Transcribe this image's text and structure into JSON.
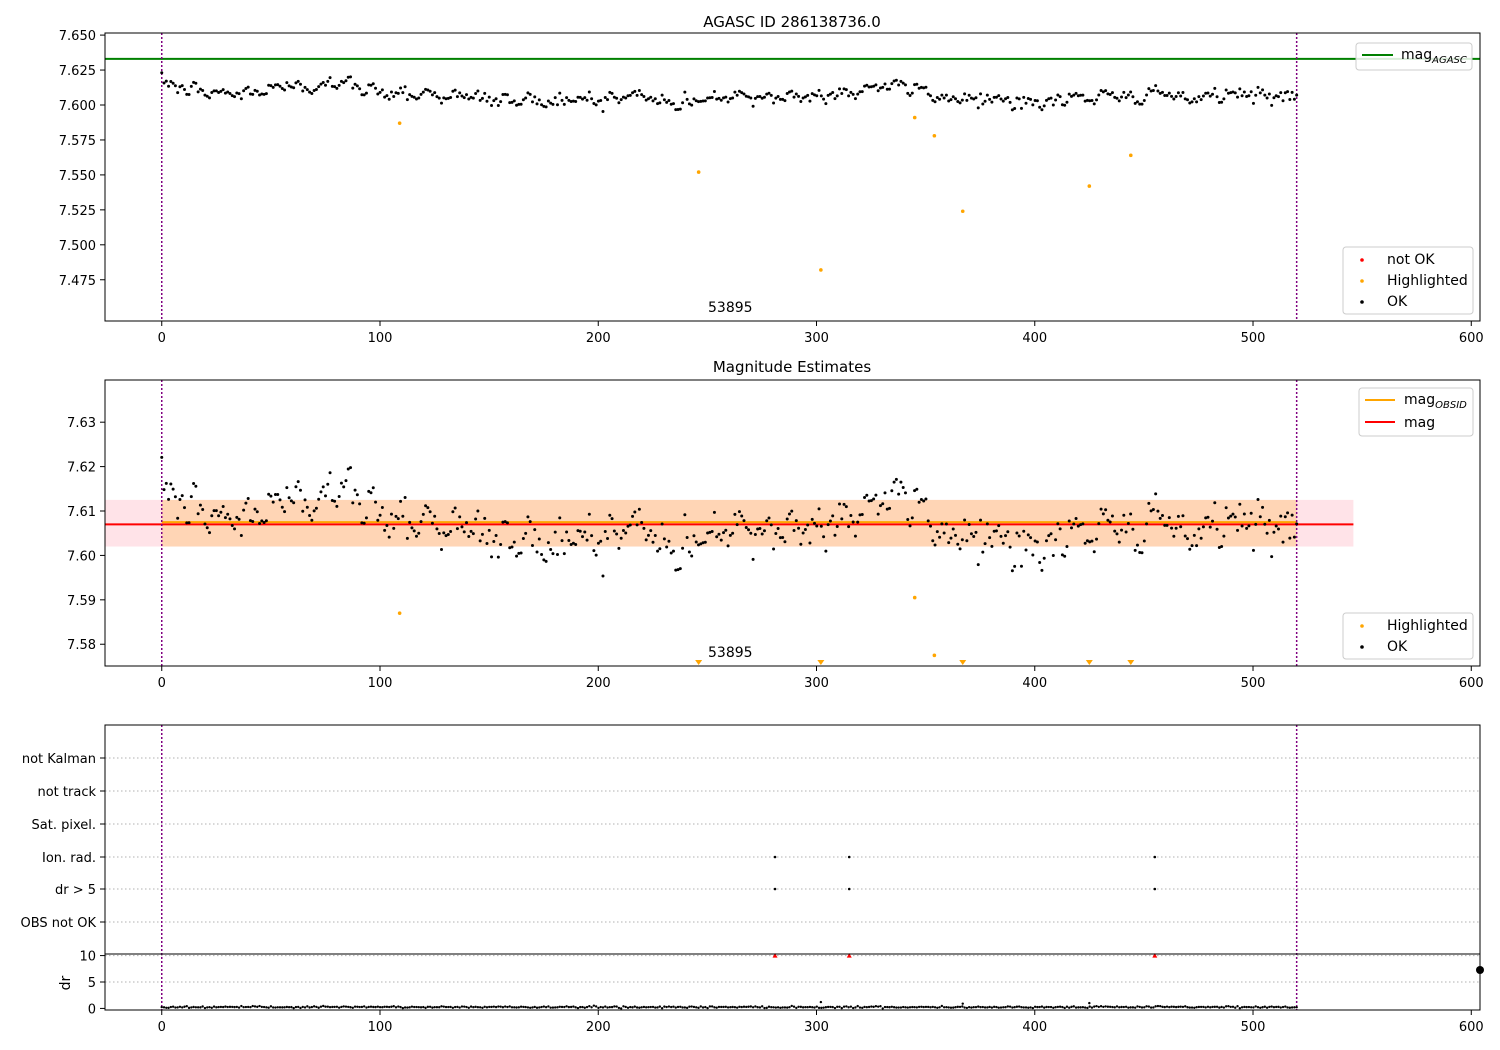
{
  "chart_data": [
    {
      "type": "scatter",
      "title": "AGASC ID 286138736.0",
      "xlim": [
        -26,
        604
      ],
      "ylim": [
        7.4455,
        7.6515
      ],
      "x_ticks": [
        0,
        100,
        200,
        300,
        400,
        500,
        600
      ],
      "y_ticks": [
        7.475,
        7.5,
        7.525,
        7.55,
        7.575,
        7.6,
        7.625,
        7.65
      ],
      "y_tick_labels": [
        "7.475",
        "7.500",
        "7.525",
        "7.550",
        "7.575",
        "7.600",
        "7.625",
        "7.650"
      ],
      "grid": false,
      "reference_lines": {
        "mag_agasc": 7.633
      },
      "obs_boundaries": [
        0,
        520
      ],
      "annotations": [
        {
          "text": "53895",
          "x": 250,
          "y": 7.456
        }
      ],
      "legends": [
        {
          "placement": "top-right",
          "entries": [
            {
              "label": "mag",
              "sub": "AGASC",
              "color": "#008000",
              "kind": "line"
            }
          ]
        },
        {
          "placement": "bottom-right",
          "entries": [
            {
              "label": "not OK",
              "color": "#ff0000",
              "kind": "dot"
            },
            {
              "label": "Highlighted",
              "color": "#ffa500",
              "kind": "dot"
            },
            {
              "label": "OK",
              "color": "#000000",
              "kind": "dot"
            }
          ]
        }
      ],
      "series": [
        {
          "name": "OK",
          "color": "#000000",
          "x_range": [
            0,
            520
          ],
          "n_points": 500,
          "mean": 7.607,
          "anchors": [
            [
              0,
              7.616
            ],
            [
              15,
              7.61
            ],
            [
              30,
              7.608
            ],
            [
              45,
              7.609
            ],
            [
              55,
              7.615
            ],
            [
              65,
              7.61
            ],
            [
              78,
              7.618
            ],
            [
              90,
              7.612
            ],
            [
              105,
              7.609
            ],
            [
              120,
              7.608
            ],
            [
              140,
              7.606
            ],
            [
              160,
              7.603
            ],
            [
              180,
              7.603
            ],
            [
              200,
              7.604
            ],
            [
              220,
              7.607
            ],
            [
              235,
              7.6
            ],
            [
              250,
              7.605
            ],
            [
              265,
              7.605
            ],
            [
              280,
              7.606
            ],
            [
              295,
              7.606
            ],
            [
              315,
              7.609
            ],
            [
              330,
              7.614
            ],
            [
              345,
              7.612
            ],
            [
              360,
              7.604
            ],
            [
              375,
              7.606
            ],
            [
              390,
              7.603
            ],
            [
              405,
              7.601
            ],
            [
              420,
              7.606
            ],
            [
              435,
              7.606
            ],
            [
              445,
              7.604
            ],
            [
              455,
              7.611
            ],
            [
              465,
              7.604
            ],
            [
              480,
              7.606
            ],
            [
              495,
              7.608
            ],
            [
              510,
              7.606
            ],
            [
              520,
              7.607
            ]
          ]
        },
        {
          "name": "Highlighted",
          "color": "#ffa500",
          "x": [
            109,
            246,
            302,
            345,
            354,
            367,
            425,
            444
          ],
          "y": [
            7.587,
            7.552,
            7.482,
            7.591,
            7.578,
            7.524,
            7.542,
            7.564
          ]
        }
      ]
    },
    {
      "type": "scatter",
      "title": "Magnitude Estimates",
      "xlim": [
        -26,
        604
      ],
      "ylim": [
        7.5751,
        7.6395
      ],
      "x_ticks": [
        0,
        100,
        200,
        300,
        400,
        500,
        600
      ],
      "y_ticks": [
        7.58,
        7.59,
        7.6,
        7.61,
        7.62,
        7.63
      ],
      "y_tick_labels": [
        "7.58",
        "7.59",
        "7.60",
        "7.61",
        "7.62",
        "7.63"
      ],
      "grid": false,
      "reference_lines": {
        "mag": 7.607,
        "mag_obsid": 7.6075
      },
      "bands": [
        {
          "color": "#ffc0cb",
          "x_range": [
            -26,
            546
          ],
          "y_range": [
            7.602,
            7.6125
          ]
        },
        {
          "color": "#ffa500",
          "x_range": [
            0,
            520
          ],
          "y_range": [
            7.602,
            7.6125
          ]
        }
      ],
      "obs_boundaries": [
        0,
        520
      ],
      "annotations": [
        {
          "text": "53895",
          "x": 250,
          "y": 7.5783
        }
      ],
      "clipped_markers_x": [
        246,
        302,
        367,
        425,
        444
      ],
      "legends": [
        {
          "placement": "top-right",
          "entries": [
            {
              "label": "mag",
              "sub": "OBSID",
              "color": "#ffa500",
              "kind": "line"
            },
            {
              "label": "mag",
              "color": "#ff0000",
              "kind": "line"
            }
          ]
        },
        {
          "placement": "bottom-right",
          "entries": [
            {
              "label": "Highlighted",
              "color": "#ffa500",
              "kind": "dot"
            },
            {
              "label": "OK",
              "color": "#000000",
              "kind": "dot"
            }
          ]
        }
      ],
      "series": [
        {
          "name": "OK",
          "color": "#000000",
          "x_range": [
            0,
            520
          ],
          "n_points": 500,
          "mean": 7.607,
          "anchors": [
            [
              0,
              7.615
            ],
            [
              15,
              7.61
            ],
            [
              30,
              7.608
            ],
            [
              45,
              7.609
            ],
            [
              55,
              7.614
            ],
            [
              65,
              7.61
            ],
            [
              78,
              7.617
            ],
            [
              90,
              7.612
            ],
            [
              105,
              7.609
            ],
            [
              120,
              7.608
            ],
            [
              140,
              7.606
            ],
            [
              160,
              7.603
            ],
            [
              180,
              7.603
            ],
            [
              200,
              7.604
            ],
            [
              220,
              7.607
            ],
            [
              235,
              7.6
            ],
            [
              250,
              7.605
            ],
            [
              265,
              7.605
            ],
            [
              280,
              7.606
            ],
            [
              295,
              7.606
            ],
            [
              315,
              7.609
            ],
            [
              330,
              7.613
            ],
            [
              345,
              7.612
            ],
            [
              360,
              7.604
            ],
            [
              375,
              7.606
            ],
            [
              390,
              7.603
            ],
            [
              405,
              7.601
            ],
            [
              420,
              7.606
            ],
            [
              435,
              7.606
            ],
            [
              445,
              7.604
            ],
            [
              455,
              7.611
            ],
            [
              465,
              7.604
            ],
            [
              480,
              7.606
            ],
            [
              495,
              7.608
            ],
            [
              510,
              7.606
            ],
            [
              520,
              7.607
            ]
          ]
        },
        {
          "name": "Highlighted",
          "color": "#ffa500",
          "x": [
            109,
            345,
            354
          ],
          "y": [
            7.587,
            7.5905,
            7.5775
          ]
        }
      ]
    },
    {
      "type": "scatter",
      "title": "",
      "xlim": [
        -26,
        604
      ],
      "x_ticks": [
        0,
        100,
        200,
        300,
        400,
        500,
        600
      ],
      "grid": true,
      "obs_boundaries": [
        0,
        520
      ],
      "flag_rows": [
        "not Kalman",
        "not track",
        "Sat. pixel.",
        "Ion. rad.",
        "dr > 5",
        "OBS not OK"
      ],
      "flag_points": [
        {
          "row": "Ion. rad.",
          "x": [
            281,
            315,
            455
          ]
        },
        {
          "row": "dr > 5",
          "x": [
            281,
            315,
            455
          ]
        }
      ],
      "dr_axis": {
        "ylabel": "dr",
        "ylim": [
          -0.3,
          10.3
        ],
        "y_ticks": [
          0,
          5,
          10
        ],
        "y_tick_labels": [
          "0",
          "5",
          "10"
        ]
      },
      "dr_series": {
        "name": "dr",
        "color": "#000000",
        "x_range": [
          0,
          520
        ],
        "n_points": 500,
        "typical": 0.25
      },
      "dr_spikes": {
        "x": [
          302,
          367,
          425
        ],
        "y": [
          1.2,
          0.9,
          1.0
        ]
      },
      "dr_clipped_markers": {
        "color": "#ff0000",
        "x": [
          281,
          315,
          455
        ]
      }
    }
  ]
}
